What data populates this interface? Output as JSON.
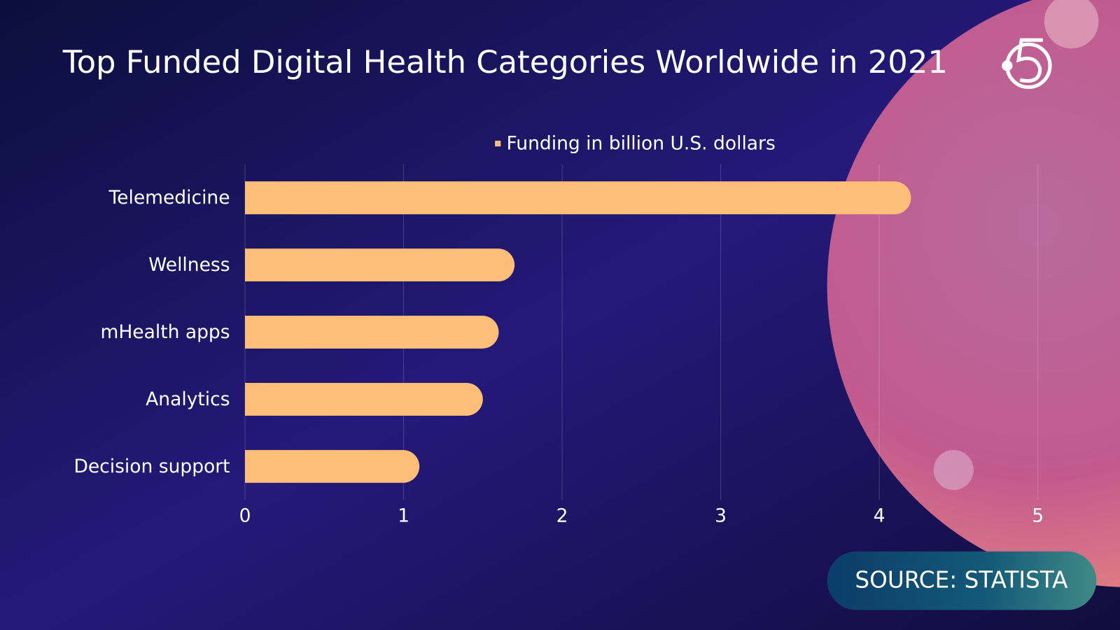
{
  "chart_data": {
    "type": "bar",
    "orientation": "horizontal",
    "title": "Top Funded Digital Health Categories Worldwide in 2021",
    "categories": [
      "Telemedicine",
      "Wellness",
      "mHealth apps",
      "Analytics",
      "Decision support"
    ],
    "series": [
      {
        "name": "Funding in billion U.S. dollars",
        "color": "#ffbe78",
        "values": [
          4.2,
          1.7,
          1.6,
          1.5,
          1.1
        ]
      }
    ],
    "xlim": [
      0,
      5
    ],
    "xticks": [
      0,
      1,
      2,
      3,
      4,
      5
    ],
    "grid": true,
    "legend": "top"
  },
  "source": "SOURCE: STATISTA"
}
